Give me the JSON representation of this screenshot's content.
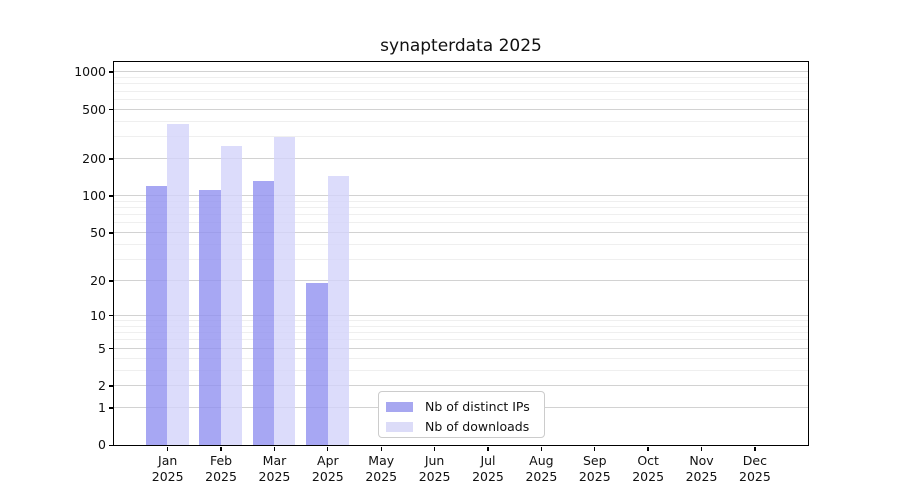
{
  "chart_data": {
    "type": "bar",
    "title": "synapterdata 2025",
    "categories": [
      "Jan",
      "Feb",
      "Mar",
      "Apr",
      "May",
      "Jun",
      "Jul",
      "Aug",
      "Sep",
      "Oct",
      "Nov",
      "Dec"
    ],
    "year_label": "2025",
    "series": [
      {
        "name": "Nb of distinct IPs",
        "bar_color": "rgba(145,145,240,0.8)",
        "swatch_color": "#a7a7f0",
        "values": [
          120,
          111,
          132,
          19,
          null,
          null,
          null,
          null,
          null,
          null,
          null,
          null
        ]
      },
      {
        "name": "Nb of downloads",
        "bar_color": "rgba(211,211,250,0.8)",
        "swatch_color": "#dcdcf8",
        "values": [
          377,
          253,
          296,
          145,
          null,
          null,
          null,
          null,
          null,
          null,
          null,
          null
        ]
      }
    ],
    "y_ticks": [
      0,
      1,
      2,
      5,
      10,
      20,
      50,
      100,
      200,
      500,
      1000
    ],
    "y_minor_ticks": [
      3,
      4,
      6,
      7,
      8,
      9,
      30,
      40,
      60,
      70,
      80,
      90,
      300,
      400,
      600,
      700,
      800,
      900
    ],
    "y_scale": "log10(1+v)",
    "y_max": 1200,
    "grid": "horizontal",
    "legend_position": "lower-center"
  },
  "colors": {
    "background": "#ffffff",
    "spine": "#000000",
    "major_grid": "#d2d2d2",
    "minor_grid": "#efefef",
    "text": "#111111"
  }
}
